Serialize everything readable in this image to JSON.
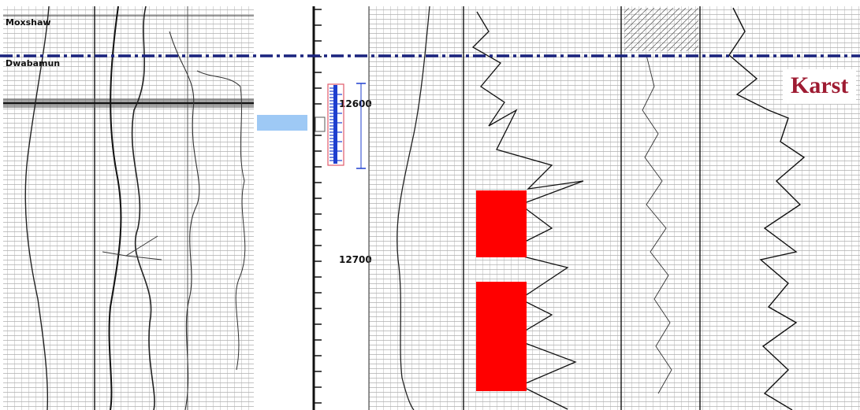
{
  "formations": [
    {
      "name": "Moxshaw"
    },
    {
      "name": "Dwabamun"
    }
  ],
  "depth_track": {
    "labels": [
      "12600",
      "12700"
    ]
  },
  "annotation": {
    "label": "Karst",
    "color": "#9e1b32"
  },
  "colors": {
    "marker_line": "#1a237e",
    "interval_fill": "#ff0000",
    "core_bar": "#1f3fcf",
    "core_bracket": "#e05a6a",
    "blue_patch": "#9ec9f5"
  }
}
